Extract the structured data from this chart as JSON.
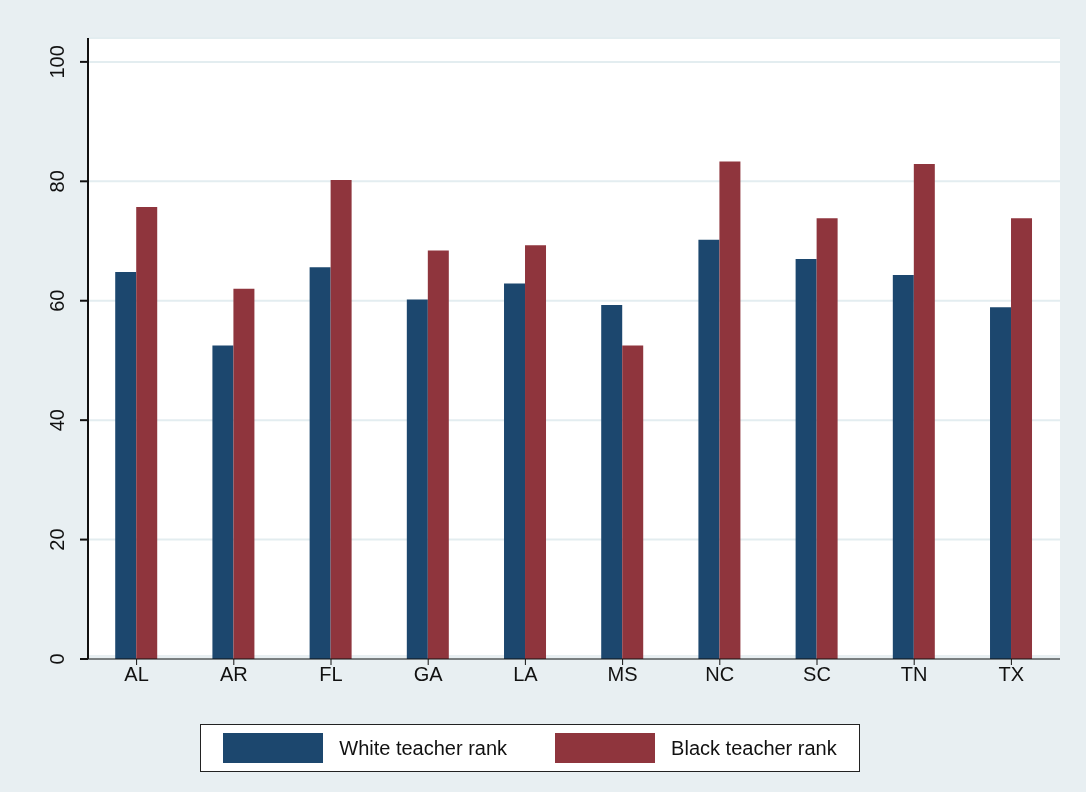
{
  "chart_data": {
    "type": "bar",
    "categories": [
      "AL",
      "AR",
      "FL",
      "GA",
      "LA",
      "MS",
      "NC",
      "SC",
      "TN",
      "TX"
    ],
    "series": [
      {
        "name": "White teacher rank",
        "color": "#1c476e",
        "values": [
          64.8,
          52.5,
          65.6,
          60.2,
          62.9,
          59.3,
          70.2,
          67.0,
          64.3,
          58.9
        ]
      },
      {
        "name": "Black teacher rank",
        "color": "#8f353d",
        "values": [
          75.7,
          62.0,
          80.2,
          68.4,
          69.3,
          52.5,
          83.3,
          73.8,
          82.9,
          73.8
        ]
      }
    ],
    "ylim": [
      0,
      104
    ],
    "yticks": [
      0,
      20,
      40,
      60,
      80,
      100
    ],
    "grid": "y",
    "legend": "bottom"
  }
}
